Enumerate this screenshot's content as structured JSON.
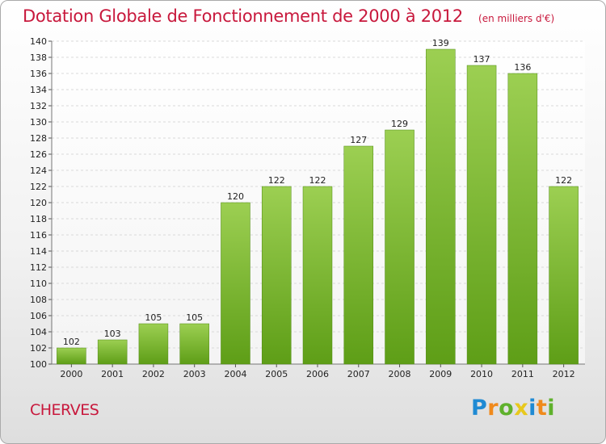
{
  "header": {
    "title": "Dotation Globale de Fonctionnement de 2000 à 2012",
    "subtitle": "(en milliers d'€)"
  },
  "footer": {
    "commune": "CHERVES",
    "logo_text": "Proxiti",
    "logo_colors": [
      "#1f8ad3",
      "#f08a1c",
      "#5fb12c",
      "#e8c81c",
      "#1f8ad3",
      "#f08a1c",
      "#5fb12c"
    ]
  },
  "colors": {
    "bar_top": "#9ccf52",
    "bar_bottom": "#5e9e17",
    "title": "#c8183c",
    "grid": "#d9d9d9"
  },
  "chart_data": {
    "type": "bar",
    "title": "Dotation Globale de Fonctionnement de 2000 à 2012",
    "subtitle": "(en milliers d'€)",
    "categories": [
      "2000",
      "2001",
      "2002",
      "2003",
      "2004",
      "2005",
      "2006",
      "2007",
      "2008",
      "2009",
      "2010",
      "2011",
      "2012"
    ],
    "values": [
      102,
      103,
      105,
      105,
      120,
      122,
      122,
      127,
      129,
      139,
      137,
      136,
      122
    ],
    "ylim": [
      100,
      140
    ],
    "yticks": [
      100,
      102,
      104,
      106,
      108,
      110,
      112,
      114,
      116,
      118,
      120,
      122,
      124,
      126,
      128,
      130,
      132,
      134,
      136,
      138,
      140
    ],
    "grid": "horizontal dashed",
    "data_labels": true
  }
}
